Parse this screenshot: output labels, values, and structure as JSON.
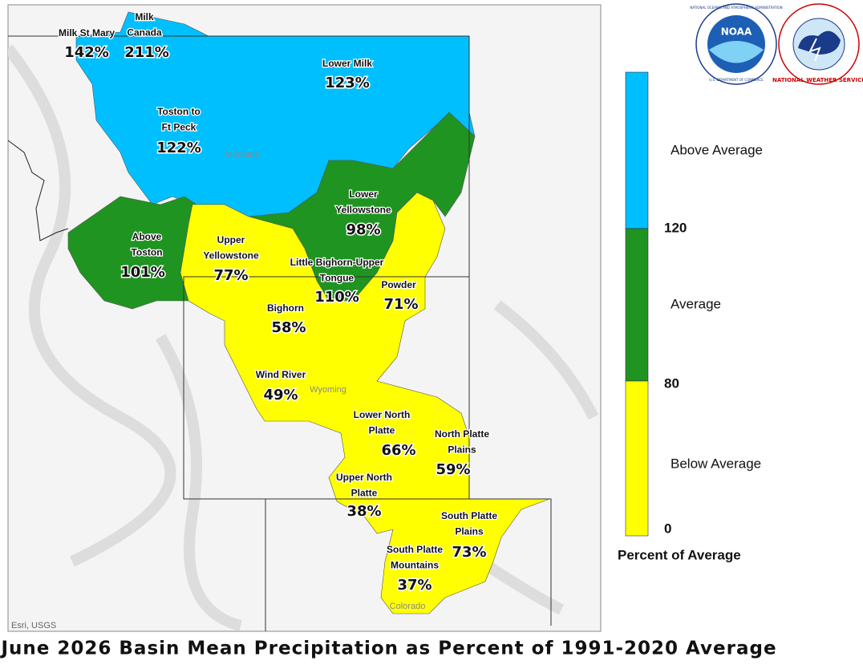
{
  "map": {
    "title": "June 2026 Basin Mean Precipitation as Percent of 1991-2020 Average",
    "attribution": "Esri, USGS",
    "states": [
      "Montana",
      "Wyoming",
      "Colorado"
    ],
    "legend": {
      "title": "Percent of Average",
      "classes": [
        {
          "label": "Above Average",
          "color": "#00bfff"
        },
        {
          "label": "Average",
          "color": "#1f9421"
        },
        {
          "label": "Below Average",
          "color": "#ffff00"
        }
      ],
      "breaks": [
        "120",
        "80",
        "0"
      ]
    },
    "logos": {
      "noaa": {
        "name": "NOAA",
        "ring_top": "NATIONAL OCEANIC AND ATMOSPHERIC ADMINISTRATION",
        "ring_bottom": "U.S. DEPARTMENT OF COMMERCE"
      },
      "nws": {
        "ring": "NATIONAL WEATHER SERVICE"
      }
    },
    "basins": [
      {
        "name": [
          "Milk St Mary"
        ],
        "value": "142%",
        "color": "#00bfff"
      },
      {
        "name": [
          "Milk",
          "Canada"
        ],
        "value": "211%",
        "color": "#00bfff"
      },
      {
        "name": [
          "Lower Milk"
        ],
        "value": "123%",
        "color": "#00bfff"
      },
      {
        "name": [
          "Toston to",
          "Ft Peck"
        ],
        "value": "122%",
        "color": "#00bfff"
      },
      {
        "name": [
          "Lower",
          "Yellowstone"
        ],
        "value": "98%",
        "color": "#1f9421"
      },
      {
        "name": [
          "Above",
          "Toston"
        ],
        "value": "101%",
        "color": "#1f9421"
      },
      {
        "name": [
          "Upper",
          "Yellowstone"
        ],
        "value": "77%",
        "color": "#ffff00"
      },
      {
        "name": [
          "Little Bighorn-Upper",
          "Tongue"
        ],
        "value": "110%",
        "color": "#1f9421"
      },
      {
        "name": [
          "Powder"
        ],
        "value": "71%",
        "color": "#ffff00"
      },
      {
        "name": [
          "Bighorn"
        ],
        "value": "58%",
        "color": "#ffff00"
      },
      {
        "name": [
          "Wind River"
        ],
        "value": "49%",
        "color": "#ffff00"
      },
      {
        "name": [
          "Lower North",
          "Platte"
        ],
        "value": "66%",
        "color": "#ffff00"
      },
      {
        "name": [
          "North Platte",
          "Plains"
        ],
        "value": "59%",
        "color": "#ffff00"
      },
      {
        "name": [
          "Upper North",
          "Platte"
        ],
        "value": "38%",
        "color": "#ffff00"
      },
      {
        "name": [
          "South Platte",
          "Plains"
        ],
        "value": "73%",
        "color": "#ffff00"
      },
      {
        "name": [
          "South Platte",
          "Mountains"
        ],
        "value": "37%",
        "color": "#ffff00"
      }
    ]
  }
}
